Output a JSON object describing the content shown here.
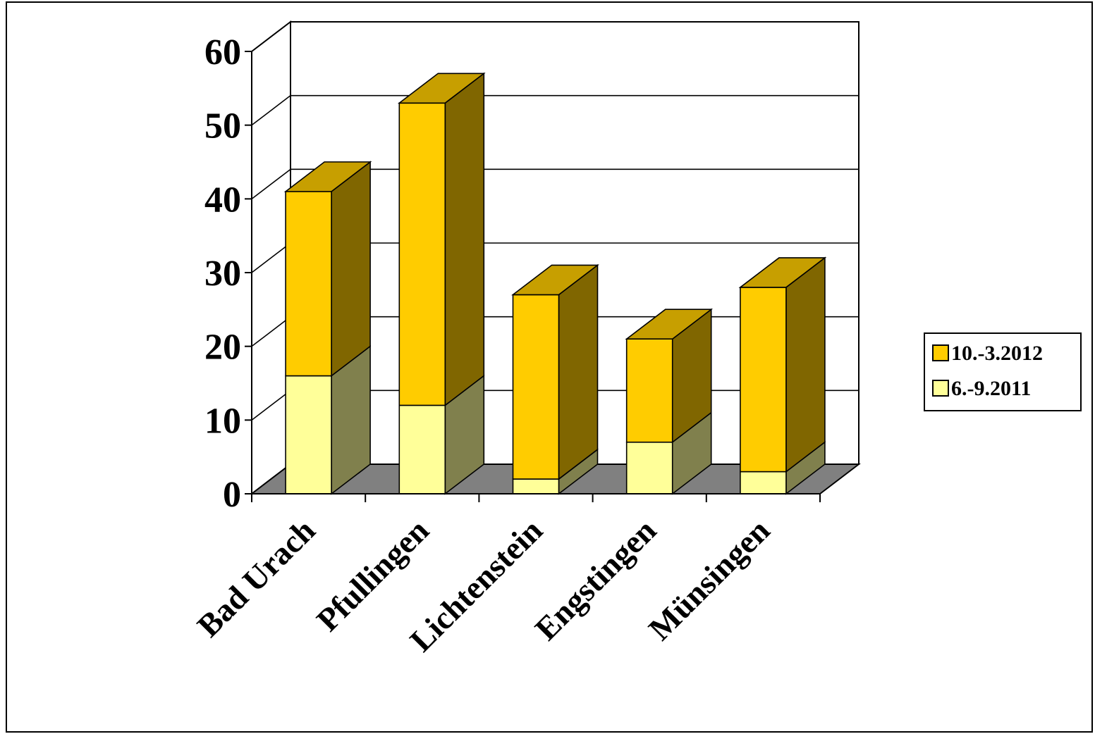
{
  "chart_data": {
    "type": "bar",
    "stacked": true,
    "three_d": true,
    "categories": [
      "Bad Urach",
      "Pfullingen",
      "Lichtenstein",
      "Engstingen",
      "Münsingen"
    ],
    "series": [
      {
        "name": "6.-9.2011",
        "values": [
          16,
          12,
          2,
          7,
          3
        ],
        "color": "#ffff99"
      },
      {
        "name": "10.-3.2012",
        "values": [
          25,
          41,
          25,
          14,
          25
        ],
        "color": "#ffcc00"
      }
    ],
    "legend_order": [
      "10.-3.2012",
      "6.-9.2011"
    ],
    "legend_position": "right",
    "ylim": [
      0,
      60
    ],
    "yticks": [
      "0",
      "10",
      "20",
      "30",
      "40",
      "50",
      "60"
    ],
    "grid": true,
    "floor_color": "#808080"
  }
}
